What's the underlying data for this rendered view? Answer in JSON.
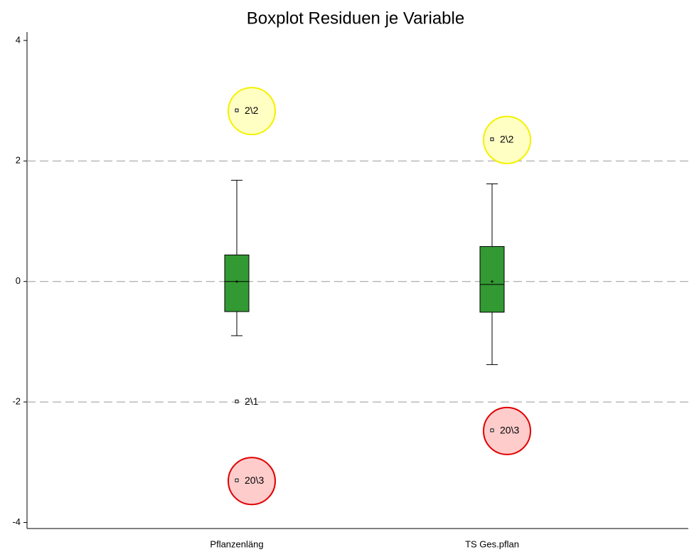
{
  "chart_data": {
    "type": "box",
    "title": "Boxplot Residuen je Variable",
    "categories": [
      "Pflanzenläng",
      "TS Ges.pflan"
    ],
    "boxes": [
      {
        "whisker_low": -0.9,
        "q1": -0.5,
        "median": 0,
        "q3": 0.44,
        "whisker_high": 1.68,
        "mean": 0,
        "outliers": [
          {
            "label": "2\\2",
            "value": 2.84,
            "highlight": "yellow"
          },
          {
            "label": "2\\1",
            "value": -1.99
          },
          {
            "label": "20\\3",
            "value": -3.3,
            "highlight": "red"
          }
        ]
      },
      {
        "whisker_low": -1.38,
        "q1": -0.51,
        "median": -0.05,
        "q3": 0.58,
        "whisker_high": 1.62,
        "mean": 0,
        "outliers": [
          {
            "label": "2\\2",
            "value": 2.36,
            "highlight": "yellow"
          },
          {
            "label": "20\\3",
            "value": -2.47,
            "highlight": "red"
          }
        ]
      }
    ],
    "color": "#339933",
    "highlight_colors": {
      "yellow": {
        "fill": "#ffffc4",
        "stroke": "#f5f000"
      },
      "red": {
        "fill": "#ffcccc",
        "stroke": "#e00000"
      }
    },
    "ylim": [
      -4.1,
      4.14
    ],
    "yticks": [
      -4,
      -2,
      0,
      2,
      4
    ],
    "grid_lines": [
      -2,
      0,
      2
    ],
    "grid": true
  }
}
